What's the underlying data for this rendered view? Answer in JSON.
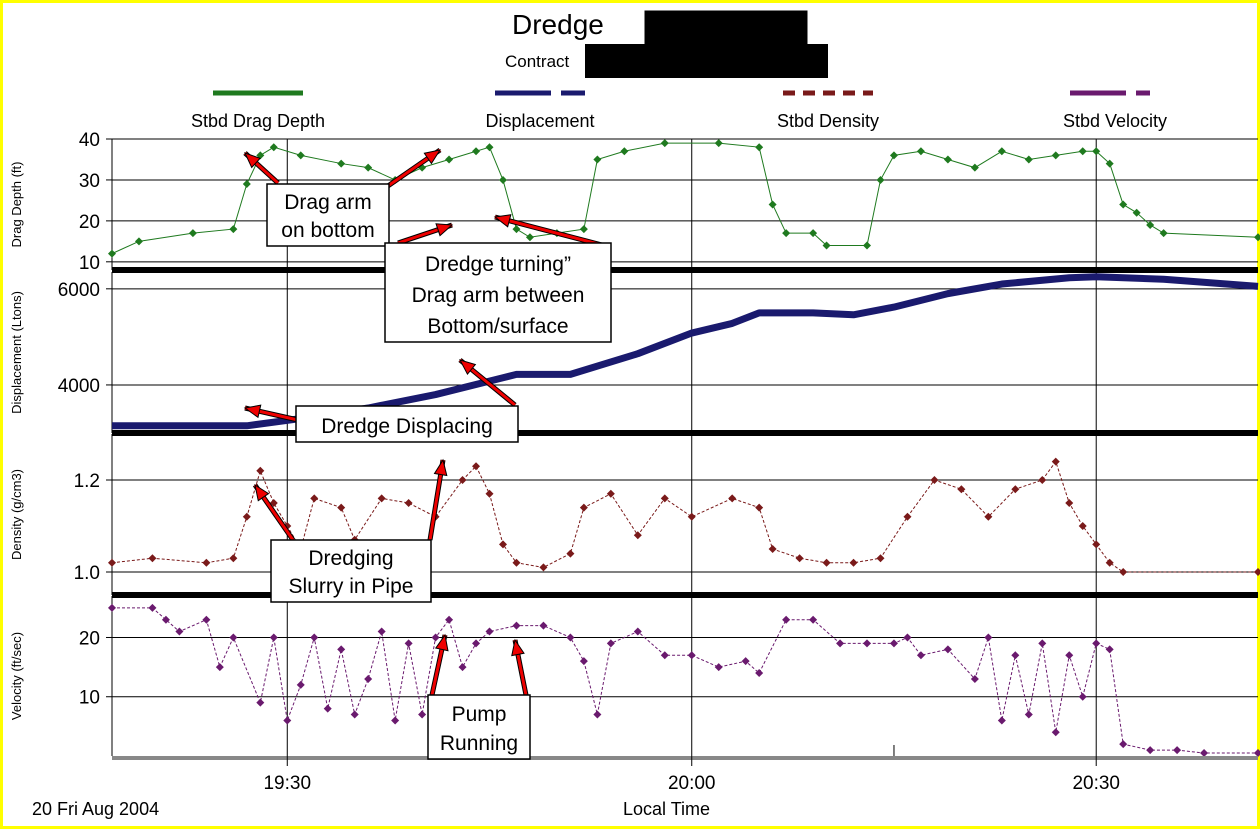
{
  "title_visible": "Dredge",
  "subtitle_visible": "Contract",
  "date_label": "20 Fri Aug 2004",
  "xaxis_label": "Local Time",
  "x_ticks": [
    "19:30",
    "20:00",
    "20:30"
  ],
  "legend": [
    {
      "name": "Stbd Drag Depth",
      "color": "#1f7a1f",
      "style": "solid"
    },
    {
      "name": "Displacement",
      "color": "#1a1a6e",
      "style": "dashed-long"
    },
    {
      "name": "Stbd Density",
      "color": "#7a1a1a",
      "style": "dashed"
    },
    {
      "name": "Stbd Velocity",
      "color": "#6a1a6e",
      "style": "dash-dot"
    }
  ],
  "annotations": {
    "drag_arm": [
      "Drag arm",
      "on bottom"
    ],
    "turning": [
      "Dredge turning”",
      "Drag arm between",
      "Bottom/surface"
    ],
    "displacing": [
      "Dredge Displacing"
    ],
    "dredging": [
      "Dredging",
      "Slurry in Pipe"
    ],
    "pump": [
      "Pump",
      "Running"
    ]
  },
  "chart_data": {
    "type": "line",
    "x_unit": "local time (hh:mm)",
    "xlim": [
      "19:17",
      "20:42"
    ],
    "panels": [
      {
        "name": "Stbd Drag Depth",
        "ylabel": "Drag Depth (ft)",
        "yticks": [
          10,
          20,
          30,
          40
        ],
        "ylim": [
          8,
          40
        ],
        "color": "#1f7a1f",
        "marker": "diamond",
        "points": [
          [
            "19:17",
            12
          ],
          [
            "19:19",
            15
          ],
          [
            "19:23",
            17
          ],
          [
            "19:26",
            18
          ],
          [
            "19:27",
            29
          ],
          [
            "19:28",
            36
          ],
          [
            "19:29",
            38
          ],
          [
            "19:31",
            36
          ],
          [
            "19:34",
            34
          ],
          [
            "19:36",
            33
          ],
          [
            "19:38",
            30
          ],
          [
            "19:40",
            33
          ],
          [
            "19:42",
            35
          ],
          [
            "19:44",
            37
          ],
          [
            "19:45",
            38
          ],
          [
            "19:46",
            30
          ],
          [
            "19:47",
            18
          ],
          [
            "19:48",
            16
          ],
          [
            "19:50",
            17
          ],
          [
            "19:52",
            18
          ],
          [
            "19:53",
            35
          ],
          [
            "19:55",
            37
          ],
          [
            "19:58",
            39
          ],
          [
            "20:02",
            39
          ],
          [
            "20:05",
            38
          ],
          [
            "20:06",
            24
          ],
          [
            "20:07",
            17
          ],
          [
            "20:09",
            17
          ],
          [
            "20:10",
            14
          ],
          [
            "20:13",
            14
          ],
          [
            "20:14",
            30
          ],
          [
            "20:15",
            36
          ],
          [
            "20:17",
            37
          ],
          [
            "20:19",
            35
          ],
          [
            "20:21",
            33
          ],
          [
            "20:23",
            37
          ],
          [
            "20:25",
            35
          ],
          [
            "20:27",
            36
          ],
          [
            "20:29",
            37
          ],
          [
            "20:30",
            37
          ],
          [
            "20:31",
            34
          ],
          [
            "20:32",
            24
          ],
          [
            "20:33",
            22
          ],
          [
            "20:34",
            19
          ],
          [
            "20:35",
            17
          ],
          [
            "20:42",
            16
          ]
        ]
      },
      {
        "name": "Displacement",
        "ylabel": "Displacement (Ltons)",
        "yticks": [
          4000,
          6000
        ],
        "ylim": [
          3000,
          6350
        ],
        "color": "#1a1a6e",
        "marker": "none",
        "points": [
          [
            "19:17",
            3150
          ],
          [
            "19:27",
            3150
          ],
          [
            "19:31",
            3300
          ],
          [
            "19:36",
            3520
          ],
          [
            "19:41",
            3800
          ],
          [
            "19:46",
            4150
          ],
          [
            "19:47",
            4220
          ],
          [
            "19:51",
            4220
          ],
          [
            "19:56",
            4650
          ],
          [
            "20:00",
            5080
          ],
          [
            "20:03",
            5280
          ],
          [
            "20:05",
            5500
          ],
          [
            "20:09",
            5500
          ],
          [
            "20:12",
            5460
          ],
          [
            "20:15",
            5620
          ],
          [
            "20:19",
            5900
          ],
          [
            "20:23",
            6100
          ],
          [
            "20:28",
            6230
          ],
          [
            "20:30",
            6250
          ],
          [
            "20:35",
            6200
          ],
          [
            "20:42",
            6050
          ]
        ]
      },
      {
        "name": "Stbd Density",
        "ylabel": "Density (g/cm3)",
        "yticks": [
          1.0,
          1.2
        ],
        "ylim": [
          0.95,
          1.3
        ],
        "color": "#7a1a1a",
        "marker": "diamond",
        "points": [
          [
            "19:17",
            1.02
          ],
          [
            "19:20",
            1.03
          ],
          [
            "19:24",
            1.02
          ],
          [
            "19:26",
            1.03
          ],
          [
            "19:27",
            1.12
          ],
          [
            "19:28",
            1.22
          ],
          [
            "19:29",
            1.15
          ],
          [
            "19:30",
            1.1
          ],
          [
            "19:31",
            1.05
          ],
          [
            "19:32",
            1.16
          ],
          [
            "19:34",
            1.14
          ],
          [
            "19:35",
            1.07
          ],
          [
            "19:37",
            1.16
          ],
          [
            "19:39",
            1.15
          ],
          [
            "19:41",
            1.12
          ],
          [
            "19:43",
            1.2
          ],
          [
            "19:44",
            1.23
          ],
          [
            "19:45",
            1.17
          ],
          [
            "19:46",
            1.06
          ],
          [
            "19:47",
            1.02
          ],
          [
            "19:49",
            1.01
          ],
          [
            "19:51",
            1.04
          ],
          [
            "19:52",
            1.14
          ],
          [
            "19:54",
            1.17
          ],
          [
            "19:56",
            1.08
          ],
          [
            "19:58",
            1.16
          ],
          [
            "20:00",
            1.12
          ],
          [
            "20:03",
            1.16
          ],
          [
            "20:05",
            1.14
          ],
          [
            "20:06",
            1.05
          ],
          [
            "20:08",
            1.03
          ],
          [
            "20:10",
            1.02
          ],
          [
            "20:12",
            1.02
          ],
          [
            "20:14",
            1.03
          ],
          [
            "20:16",
            1.12
          ],
          [
            "20:18",
            1.2
          ],
          [
            "20:20",
            1.18
          ],
          [
            "20:22",
            1.12
          ],
          [
            "20:24",
            1.18
          ],
          [
            "20:26",
            1.2
          ],
          [
            "20:27",
            1.24
          ],
          [
            "20:28",
            1.15
          ],
          [
            "20:29",
            1.1
          ],
          [
            "20:30",
            1.06
          ],
          [
            "20:31",
            1.02
          ],
          [
            "20:32",
            1.0
          ],
          [
            "20:42",
            1.0
          ]
        ]
      },
      {
        "name": "Stbd Velocity",
        "ylabel": "Velocity (ft/sec)",
        "yticks": [
          10,
          20
        ],
        "ylim": [
          0,
          27
        ],
        "color": "#6a1a6e",
        "marker": "diamond",
        "points": [
          [
            "19:17",
            25
          ],
          [
            "19:20",
            25
          ],
          [
            "19:21",
            23
          ],
          [
            "19:22",
            21
          ],
          [
            "19:24",
            23
          ],
          [
            "19:25",
            15
          ],
          [
            "19:26",
            20
          ],
          [
            "19:28",
            9
          ],
          [
            "19:29",
            20
          ],
          [
            "19:30",
            6
          ],
          [
            "19:31",
            12
          ],
          [
            "19:32",
            20
          ],
          [
            "19:33",
            8
          ],
          [
            "19:34",
            18
          ],
          [
            "19:35",
            7
          ],
          [
            "19:36",
            13
          ],
          [
            "19:37",
            21
          ],
          [
            "19:38",
            6
          ],
          [
            "19:39",
            19
          ],
          [
            "19:40",
            7
          ],
          [
            "19:41",
            20
          ],
          [
            "19:42",
            23
          ],
          [
            "19:43",
            15
          ],
          [
            "19:44",
            19
          ],
          [
            "19:45",
            21
          ],
          [
            "19:47",
            22
          ],
          [
            "19:49",
            22
          ],
          [
            "19:51",
            20
          ],
          [
            "19:52",
            16
          ],
          [
            "19:53",
            7
          ],
          [
            "19:54",
            19
          ],
          [
            "19:56",
            21
          ],
          [
            "19:58",
            17
          ],
          [
            "20:00",
            17
          ],
          [
            "20:02",
            15
          ],
          [
            "20:04",
            16
          ],
          [
            "20:05",
            14
          ],
          [
            "20:07",
            23
          ],
          [
            "20:09",
            23
          ],
          [
            "20:11",
            19
          ],
          [
            "20:13",
            19
          ],
          [
            "20:15",
            19
          ],
          [
            "20:16",
            20
          ],
          [
            "20:17",
            17
          ],
          [
            "20:19",
            18
          ],
          [
            "20:21",
            13
          ],
          [
            "20:22",
            20
          ],
          [
            "20:23",
            6
          ],
          [
            "20:24",
            17
          ],
          [
            "20:25",
            7
          ],
          [
            "20:26",
            19
          ],
          [
            "20:27",
            4
          ],
          [
            "20:28",
            17
          ],
          [
            "20:29",
            10
          ],
          [
            "20:30",
            19
          ],
          [
            "20:31",
            18
          ],
          [
            "20:32",
            2
          ],
          [
            "20:34",
            1
          ],
          [
            "20:36",
            1
          ],
          [
            "20:38",
            0.5
          ],
          [
            "20:42",
            0.5
          ]
        ]
      }
    ]
  }
}
